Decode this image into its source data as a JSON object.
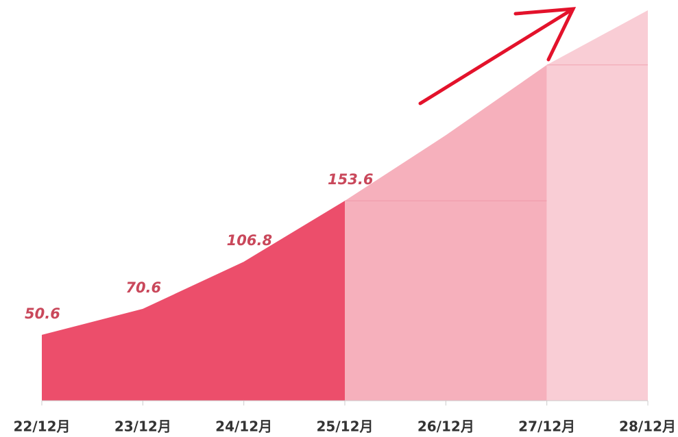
{
  "chart_data": {
    "type": "area",
    "categories": [
      "22/12月",
      "23/12月",
      "24/12月",
      "25/12月",
      "26/12月",
      "27/12月",
      "28/12月"
    ],
    "series": [
      {
        "color": "#ec4e6b",
        "values": [
          50.6,
          70.6,
          106.8,
          153.6,
          null,
          null,
          null
        ],
        "show_labels": true
      },
      {
        "color": "#f6b0bc",
        "values": [
          null,
          null,
          null,
          153.6,
          204,
          258,
          null
        ]
      },
      {
        "color": "#f9cdd5",
        "values": [
          null,
          null,
          null,
          null,
          null,
          258,
          300
        ]
      }
    ],
    "ylim": [
      0,
      300
    ],
    "label_color": "#c9485b"
  }
}
